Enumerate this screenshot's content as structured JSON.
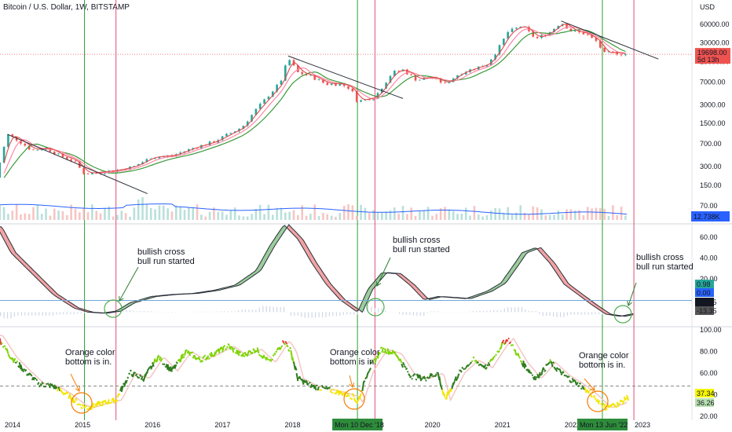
{
  "title": "Bitcoin / U.S. Dollar, 1W, BITSTAMP",
  "chart_data": [
    {
      "type": "candlestick",
      "panel": "price",
      "title": "Bitcoin / U.S. Dollar, 1W, BITSTAMP",
      "y_scale": "log",
      "y_ticks": [
        70,
        150,
        300,
        700,
        1500,
        3000,
        7000,
        15000,
        30000,
        60000
      ],
      "y_tick_labels": [
        "70.00",
        "150.00",
        "300.00",
        "700.00",
        "1500.00",
        "3000.00",
        "7000.00",
        "15000.00",
        "30000.00",
        "60000.00"
      ],
      "price_series": {
        "x": [
          2013.75,
          2013.95,
          2014.1,
          2014.3,
          2014.5,
          2014.7,
          2014.9,
          2015.05,
          2015.25,
          2015.5,
          2015.75,
          2016.0,
          2016.3,
          2016.6,
          2016.9,
          2017.1,
          2017.3,
          2017.5,
          2017.7,
          2017.85,
          2017.96,
          2018.1,
          2018.3,
          2018.5,
          2018.7,
          2018.85,
          2018.95,
          2019.2,
          2019.45,
          2019.6,
          2019.8,
          2020.0,
          2020.2,
          2020.4,
          2020.6,
          2020.8,
          2020.95,
          2021.1,
          2021.3,
          2021.5,
          2021.7,
          2021.86,
          2022.0,
          2022.2,
          2022.4,
          2022.45,
          2022.6,
          2022.75
        ],
        "y": [
          150,
          1000,
          800,
          550,
          600,
          450,
          370,
          230,
          240,
          260,
          300,
          420,
          450,
          600,
          760,
          1000,
          1300,
          2500,
          4500,
          7000,
          17000,
          10000,
          8500,
          6500,
          6500,
          5500,
          3400,
          4000,
          10000,
          11000,
          7500,
          8500,
          6500,
          9500,
          11500,
          13500,
          23000,
          45000,
          57000,
          35000,
          45000,
          65000,
          47000,
          42000,
          30000,
          20000,
          21000,
          19700
        ]
      },
      "last_price": "19698.00",
      "countdown": "5d 13h",
      "volume_label": "12.738K",
      "trendlines": [
        {
          "from": [
            2013.95,
            1000
          ],
          "to": [
            2015.95,
            110
          ]
        },
        {
          "from": [
            2017.96,
            18500
          ],
          "to": [
            2019.6,
            3800
          ]
        },
        {
          "from": [
            2021.86,
            68000
          ],
          "to": [
            2023.25,
            16500
          ]
        }
      ],
      "vlines_green": [
        2015.05,
        2018.95,
        2022.45
      ],
      "vlines_red": [
        2015.5,
        2019.2,
        2022.9
      ],
      "colors": {
        "up": "#26a69a",
        "down": "#ef5350",
        "ma_red": "#e04a4a",
        "ma_pink": "#ff7fa0",
        "ma_green": "#3a9a3a",
        "volume_line": "#2962ff",
        "green_vline": "#2e9e2e",
        "red_vline": "#e0507a"
      }
    },
    {
      "type": "line",
      "panel": "oscillator",
      "y_ticks": [
        60,
        40,
        20
      ],
      "y_tick_labels": [
        "60.00",
        "40.00",
        "20.00"
      ],
      "x": [
        2013.8,
        2014.0,
        2014.3,
        2014.6,
        2014.9,
        2015.1,
        2015.3,
        2015.5,
        2015.7,
        2016.0,
        2016.3,
        2016.6,
        2016.9,
        2017.2,
        2017.5,
        2017.7,
        2017.9,
        2018.1,
        2018.3,
        2018.5,
        2018.7,
        2018.95,
        2019.1,
        2019.3,
        2019.5,
        2019.7,
        2019.9,
        2020.1,
        2020.3,
        2020.5,
        2020.8,
        2021.0,
        2021.2,
        2021.3,
        2021.5,
        2021.7,
        2021.9,
        2022.1,
        2022.3,
        2022.5,
        2022.7,
        2022.9
      ],
      "y": [
        70,
        45,
        25,
        5,
        -8,
        -12,
        -13,
        -11,
        -3,
        3,
        5,
        6,
        9,
        14,
        28,
        52,
        72,
        58,
        35,
        15,
        0,
        -12,
        10,
        26,
        25,
        14,
        0,
        3,
        2,
        1,
        8,
        16,
        35,
        45,
        50,
        35,
        15,
        5,
        -5,
        -14,
        -16,
        -13.35
      ],
      "labels": [
        "0.98",
        "0.00",
        "-13.35",
        "-13.35"
      ],
      "label_colors": [
        "#26a69a",
        "#2962ff",
        "#131722",
        "#555555"
      ],
      "hline": 0
    },
    {
      "type": "line",
      "panel": "rsi",
      "y_ticks": [
        100,
        80,
        60,
        40,
        20
      ],
      "y_tick_labels": [
        "100.00",
        "80.00",
        "60.00",
        "40.00",
        "20.00"
      ],
      "x": [
        2013.8,
        2014.0,
        2014.2,
        2014.4,
        2014.6,
        2014.8,
        2015.0,
        2015.1,
        2015.3,
        2015.5,
        2015.7,
        2015.9,
        2016.1,
        2016.3,
        2016.5,
        2016.7,
        2016.9,
        2017.1,
        2017.3,
        2017.5,
        2017.7,
        2017.9,
        2018.0,
        2018.1,
        2018.3,
        2018.5,
        2018.7,
        2018.9,
        2018.95,
        2019.1,
        2019.3,
        2019.5,
        2019.7,
        2019.9,
        2020.1,
        2020.2,
        2020.4,
        2020.6,
        2020.8,
        2021.0,
        2021.1,
        2021.3,
        2021.5,
        2021.7,
        2021.9,
        2022.1,
        2022.3,
        2022.5,
        2022.7,
        2022.8
      ],
      "y": [
        95,
        75,
        62,
        50,
        48,
        40,
        30,
        28,
        32,
        35,
        60,
        55,
        75,
        62,
        80,
        72,
        78,
        85,
        76,
        82,
        70,
        90,
        80,
        55,
        48,
        45,
        42,
        38,
        32,
        62,
        82,
        78,
        58,
        55,
        60,
        35,
        60,
        72,
        65,
        85,
        92,
        70,
        55,
        70,
        58,
        50,
        40,
        28,
        32,
        37.34
      ],
      "dashed_line": 48,
      "labels": [
        "37.34",
        "36.26"
      ],
      "label_colors": [
        "#f5f500",
        "#b8e0b0"
      ]
    }
  ],
  "x_axis": {
    "ticks": [
      2014,
      2015,
      2016,
      2017,
      2018,
      2019,
      2020,
      2021,
      2022,
      2023
    ],
    "labels": [
      "2014",
      "2015",
      "",
      "2016",
      "2017",
      "2018",
      "",
      "2020",
      "2021",
      "2022",
      "",
      "2023"
    ],
    "tick_labels": [
      "2014",
      "2015",
      "2016",
      "2017",
      "2018",
      "2020",
      "2021",
      "2022",
      "2023"
    ],
    "highlight_labels": [
      "Mon 10 Dec '18",
      "Mon 13 Jun '22"
    ]
  },
  "annotations": {
    "bullish_1": [
      "bullish cross",
      "bull run started"
    ],
    "bullish_2": [
      "bullish cross",
      "bull run started"
    ],
    "bullish_3": [
      "bullish cross",
      "bull run started"
    ],
    "orange_1": [
      "Orange color",
      "bottom is in."
    ],
    "orange_2": [
      "Orange color",
      "bottom is in."
    ],
    "orange_3": [
      "Orange color",
      "bottom is in."
    ]
  },
  "price_axis_labels": {
    "currency": "USD"
  }
}
